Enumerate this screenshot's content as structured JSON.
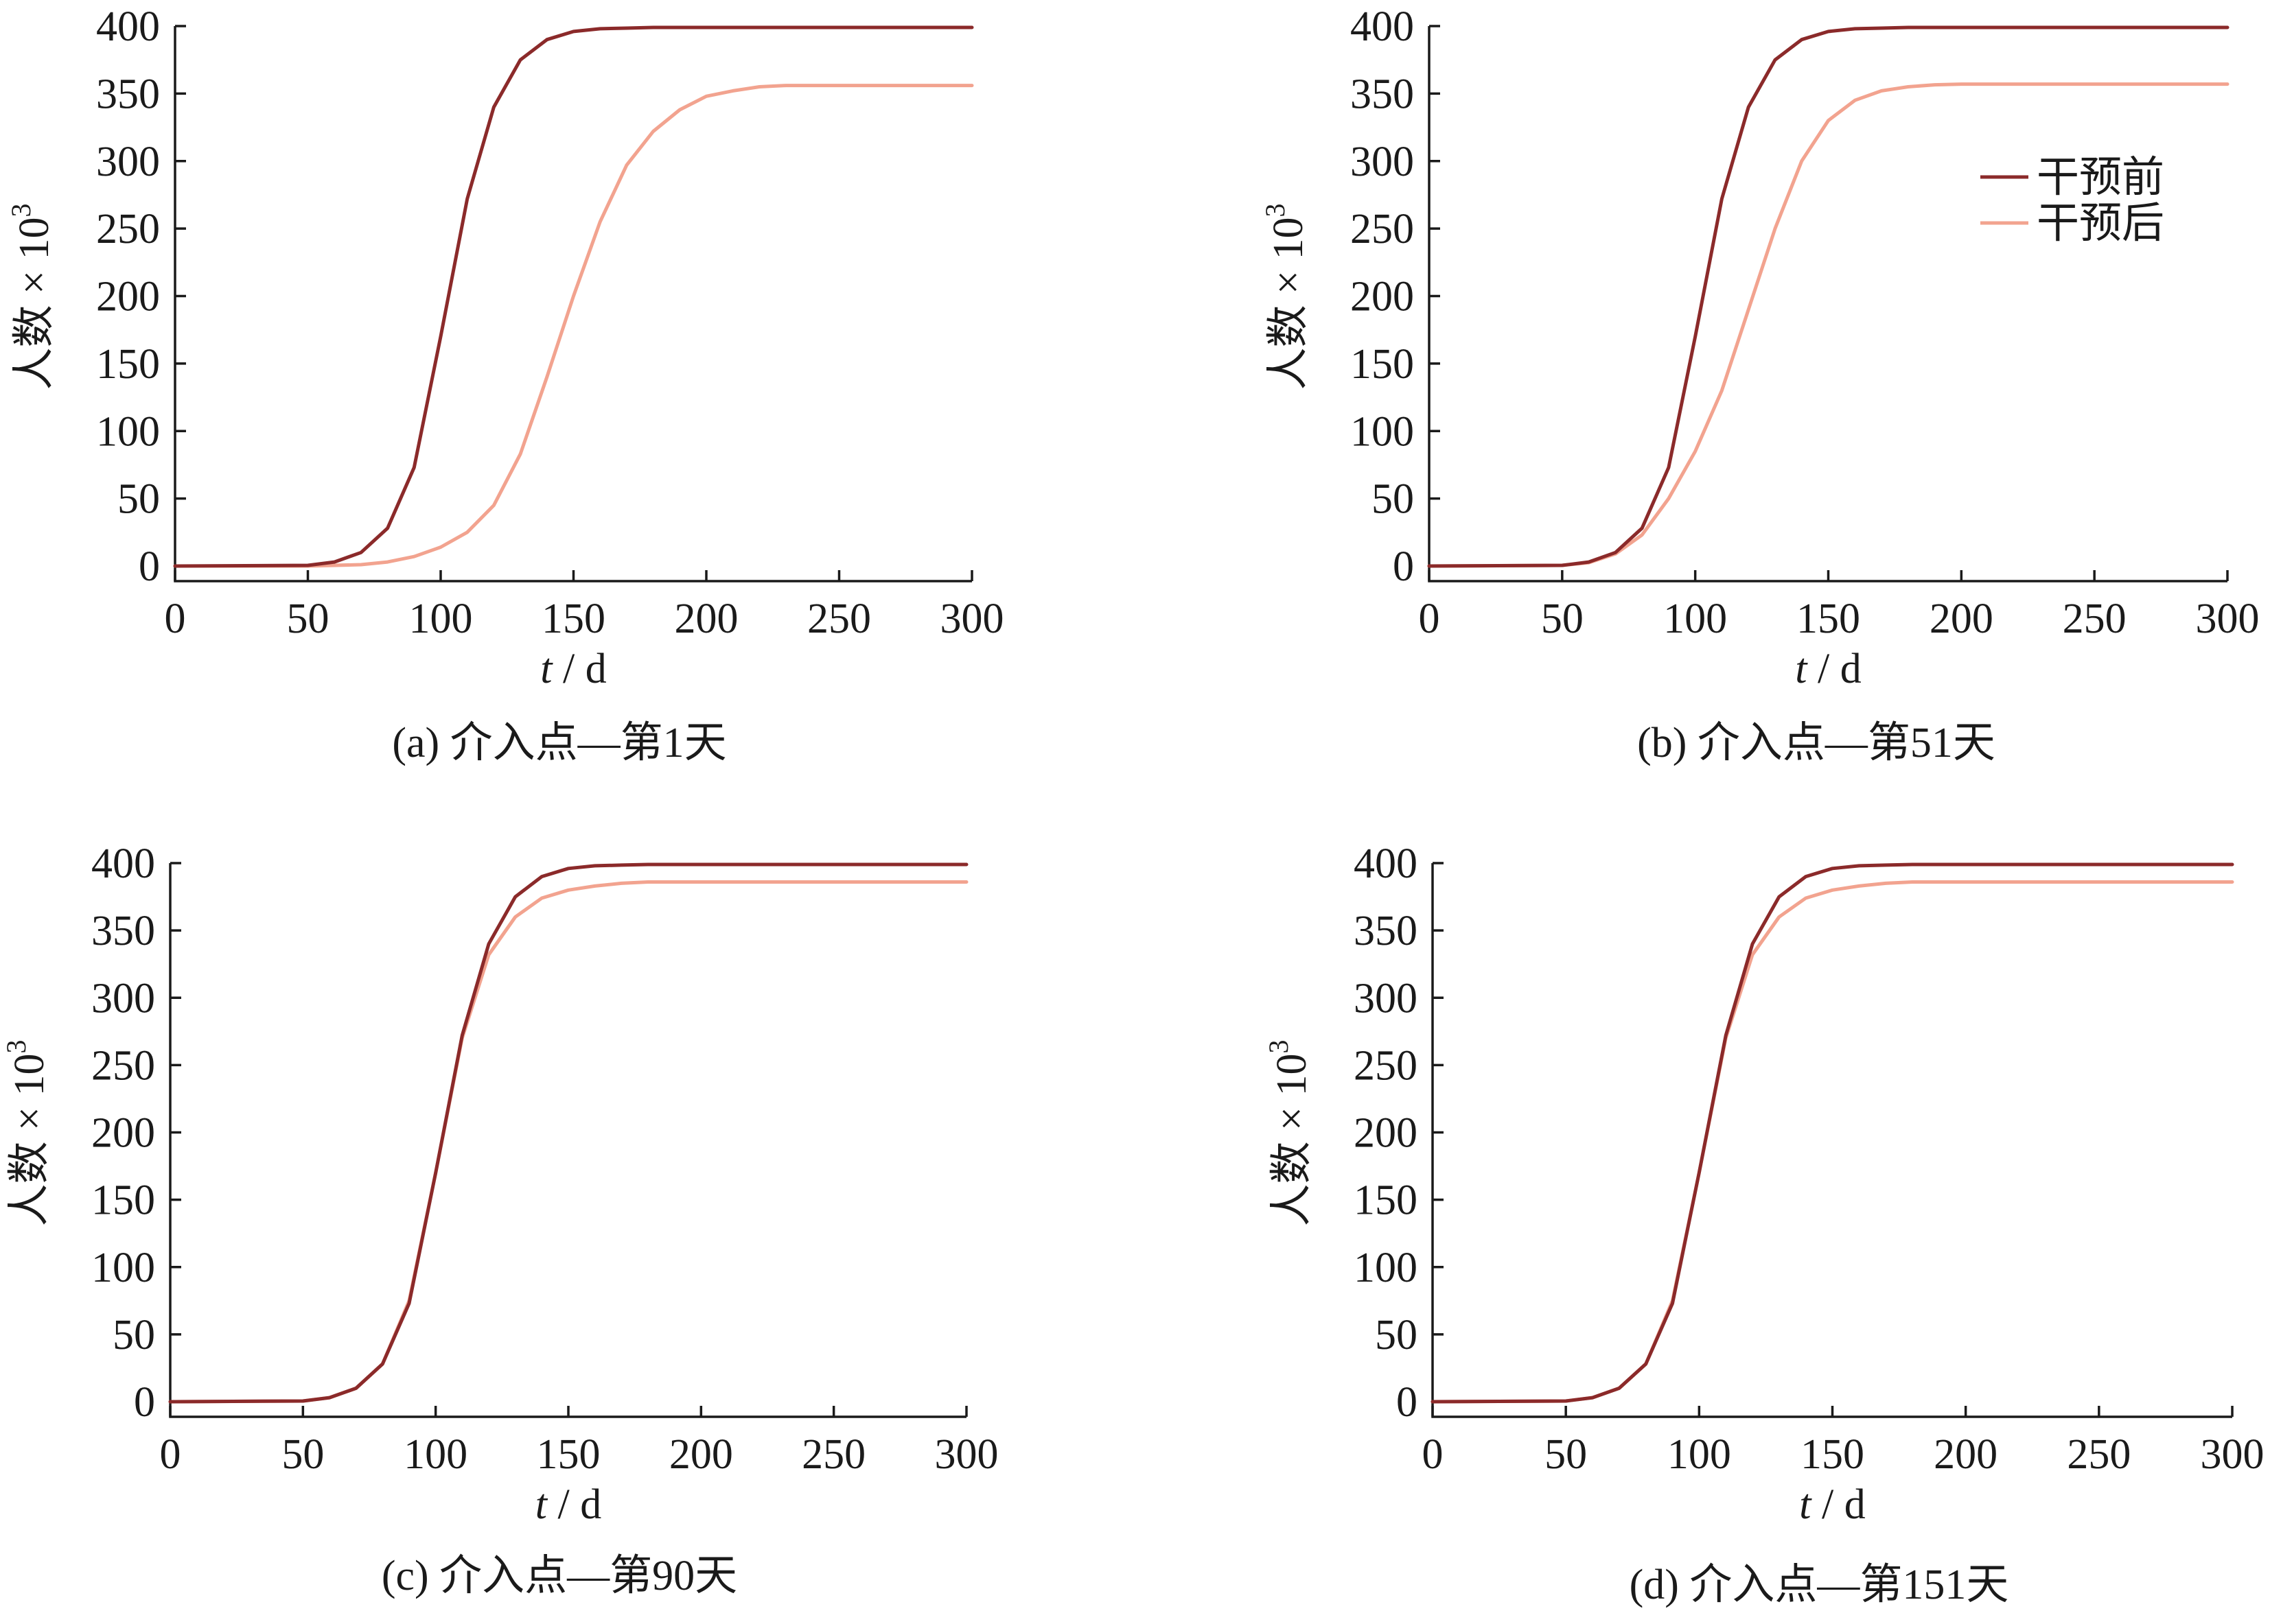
{
  "colors": {
    "before": "#8b2a2a",
    "after": "#f2a38f",
    "axis": "#1a1a1a"
  },
  "legend": {
    "before_label": "干预前",
    "after_label": "干预后"
  },
  "chart_data": [
    {
      "type": "line",
      "caption": "(a)  介入点—第1天",
      "xlabel_italic": "t",
      "xlabel_rest": " / d",
      "ylabel_main": "人数 × 10",
      "ylabel_sup": "3",
      "xlim": [
        0,
        300
      ],
      "ylim": [
        0,
        400
      ],
      "xticks": [
        0,
        50,
        100,
        150,
        200,
        250,
        300
      ],
      "yticks": [
        0,
        50,
        100,
        150,
        200,
        250,
        300,
        350,
        400
      ],
      "legend_shown": false,
      "series": [
        {
          "key": "before",
          "x": [
            0,
            50,
            60,
            70,
            80,
            90,
            100,
            110,
            120,
            130,
            140,
            150,
            160,
            170,
            180,
            200,
            250,
            300
          ],
          "values": [
            0,
            0.5,
            3,
            10,
            28,
            73,
            170,
            272,
            340,
            375,
            390,
            396,
            398,
            398.5,
            399,
            399,
            399,
            399
          ]
        },
        {
          "key": "after",
          "x": [
            0,
            50,
            70,
            80,
            90,
            100,
            110,
            120,
            130,
            140,
            150,
            160,
            170,
            180,
            190,
            200,
            210,
            220,
            230,
            250,
            300
          ],
          "values": [
            0,
            0,
            1,
            3,
            7,
            14,
            25,
            45,
            83,
            140,
            200,
            255,
            297,
            322,
            338,
            348,
            352,
            355,
            356,
            356,
            356
          ]
        }
      ]
    },
    {
      "type": "line",
      "caption": "(b)  介入点—第51天",
      "xlabel_italic": "t",
      "xlabel_rest": " / d",
      "ylabel_main": "人数 × 10",
      "ylabel_sup": "3",
      "xlim": [
        0,
        300
      ],
      "ylim": [
        0,
        400
      ],
      "xticks": [
        0,
        50,
        100,
        150,
        200,
        250,
        300
      ],
      "yticks": [
        0,
        50,
        100,
        150,
        200,
        250,
        300,
        350,
        400
      ],
      "legend_shown": true,
      "legend_position": "upper-right",
      "series": [
        {
          "key": "before",
          "x": [
            0,
            50,
            60,
            70,
            80,
            90,
            100,
            110,
            120,
            130,
            140,
            150,
            160,
            170,
            180,
            200,
            250,
            300
          ],
          "values": [
            0,
            0.5,
            3,
            10,
            28,
            73,
            170,
            272,
            340,
            375,
            390,
            396,
            398,
            398.5,
            399,
            399,
            399,
            399
          ]
        },
        {
          "key": "after",
          "x": [
            0,
            50,
            60,
            70,
            80,
            90,
            100,
            110,
            120,
            130,
            140,
            150,
            160,
            170,
            180,
            190,
            200,
            220,
            250,
            300
          ],
          "values": [
            0,
            0.5,
            2.5,
            9,
            23,
            50,
            85,
            130,
            190,
            250,
            300,
            330,
            345,
            352,
            355,
            356.5,
            357,
            357,
            357,
            357
          ]
        }
      ]
    },
    {
      "type": "line",
      "caption": "(c)  介入点—第90天",
      "xlabel_italic": "t",
      "xlabel_rest": " / d",
      "ylabel_main": "人数 × 10",
      "ylabel_sup": "3",
      "xlim": [
        0,
        300
      ],
      "ylim": [
        0,
        400
      ],
      "xticks": [
        0,
        50,
        100,
        150,
        200,
        250,
        300
      ],
      "yticks": [
        0,
        50,
        100,
        150,
        200,
        250,
        300,
        350,
        400
      ],
      "legend_shown": false,
      "series": [
        {
          "key": "before",
          "x": [
            0,
            50,
            60,
            70,
            80,
            90,
            100,
            110,
            120,
            130,
            140,
            150,
            160,
            170,
            180,
            200,
            250,
            300
          ],
          "values": [
            0,
            0.5,
            3,
            10,
            28,
            73,
            170,
            272,
            340,
            375,
            390,
            396,
            398,
            398.5,
            399,
            399,
            399,
            399
          ]
        },
        {
          "key": "after",
          "x": [
            0,
            50,
            60,
            70,
            80,
            90,
            100,
            110,
            120,
            130,
            140,
            150,
            160,
            170,
            180,
            200,
            250,
            300
          ],
          "values": [
            0,
            0.5,
            3,
            10,
            28,
            75,
            170,
            270,
            332,
            360,
            374,
            380,
            383,
            385,
            386,
            386,
            386,
            386
          ]
        }
      ]
    },
    {
      "type": "line",
      "caption": "(d)  介入点—第151天",
      "xlabel_italic": "t",
      "xlabel_rest": " / d",
      "ylabel_main": "人数 × 10",
      "ylabel_sup": "3",
      "xlim": [
        0,
        300
      ],
      "ylim": [
        0,
        400
      ],
      "xticks": [
        0,
        50,
        100,
        150,
        200,
        250,
        300
      ],
      "yticks": [
        0,
        50,
        100,
        150,
        200,
        250,
        300,
        350,
        400
      ],
      "legend_shown": false,
      "series": [
        {
          "key": "before",
          "x": [
            0,
            50,
            60,
            70,
            80,
            90,
            100,
            110,
            120,
            130,
            140,
            150,
            160,
            170,
            180,
            200,
            250,
            300
          ],
          "values": [
            0,
            0.5,
            3,
            10,
            28,
            73,
            170,
            272,
            340,
            375,
            390,
            396,
            398,
            398.5,
            399,
            399,
            399,
            399
          ]
        },
        {
          "key": "after",
          "x": [
            0,
            50,
            60,
            70,
            80,
            90,
            100,
            110,
            120,
            130,
            140,
            150,
            160,
            170,
            180,
            200,
            250,
            300
          ],
          "values": [
            0,
            0.5,
            3,
            10,
            28,
            75,
            170,
            270,
            332,
            360,
            374,
            380,
            383,
            385,
            386,
            386,
            386,
            386
          ]
        }
      ]
    }
  ]
}
